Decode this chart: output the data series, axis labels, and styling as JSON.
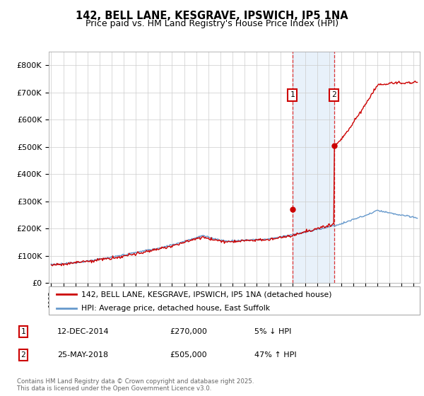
{
  "title": "142, BELL LANE, KESGRAVE, IPSWICH, IP5 1NA",
  "subtitle": "Price paid vs. HM Land Registry's House Price Index (HPI)",
  "ylabel_ticks": [
    "£0",
    "£100K",
    "£200K",
    "£300K",
    "£400K",
    "£500K",
    "£600K",
    "£700K",
    "£800K"
  ],
  "ytick_values": [
    0,
    100000,
    200000,
    300000,
    400000,
    500000,
    600000,
    700000,
    800000
  ],
  "ylim": [
    0,
    850000
  ],
  "xlim_start": 1994.8,
  "xlim_end": 2025.5,
  "xticks": [
    1995,
    1996,
    1997,
    1998,
    1999,
    2000,
    2001,
    2002,
    2003,
    2004,
    2005,
    2006,
    2007,
    2008,
    2009,
    2010,
    2011,
    2012,
    2013,
    2014,
    2015,
    2016,
    2017,
    2018,
    2019,
    2020,
    2021,
    2022,
    2023,
    2024,
    2025
  ],
  "red_line_color": "#cc0000",
  "blue_line_color": "#6699cc",
  "fill_color": "#cce0f5",
  "vline_color": "#dd3333",
  "marker1_date": 2014.95,
  "marker2_date": 2018.42,
  "marker1_price": 270000,
  "marker2_price": 505000,
  "legend_red": "142, BELL LANE, KESGRAVE, IPSWICH, IP5 1NA (detached house)",
  "legend_blue": "HPI: Average price, detached house, East Suffolk",
  "table_row1": [
    "1",
    "12-DEC-2014",
    "£270,000",
    "5% ↓ HPI"
  ],
  "table_row2": [
    "2",
    "25-MAY-2018",
    "£505,000",
    "47% ↑ HPI"
  ],
  "footnote": "Contains HM Land Registry data © Crown copyright and database right 2025.\nThis data is licensed under the Open Government Licence v3.0.",
  "background_color": "#ffffff",
  "grid_color": "#cccccc"
}
